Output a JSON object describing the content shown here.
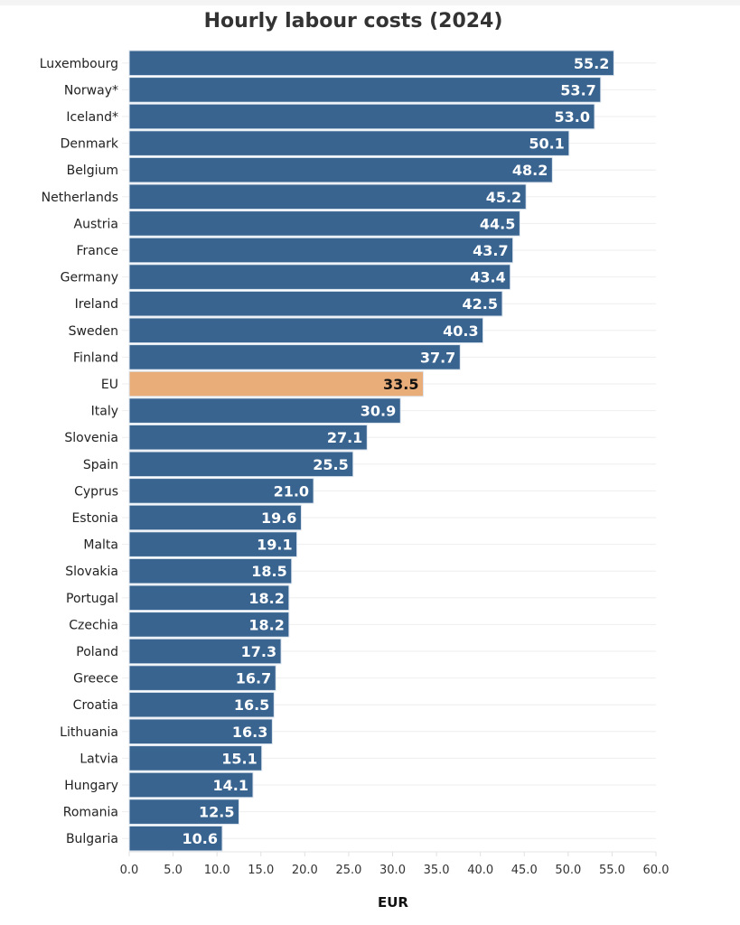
{
  "chart_data": {
    "type": "bar",
    "orientation": "horizontal",
    "title": "Hourly labour costs (2024)",
    "xlabel": "EUR",
    "ylabel": "",
    "xlim": [
      0,
      60
    ],
    "xticks": [
      "0.0",
      "5.0",
      "10.0",
      "15.0",
      "20.0",
      "25.0",
      "30.0",
      "35.0",
      "40.0",
      "45.0",
      "50.0",
      "55.0",
      "60.0"
    ],
    "grid": true,
    "categories": [
      "Luxembourg",
      "Norway*",
      "Iceland*",
      "Denmark",
      "Belgium",
      "Netherlands",
      "Austria",
      "France",
      "Germany",
      "Ireland",
      "Sweden",
      "Finland",
      "EU",
      "Italy",
      "Slovenia",
      "Spain",
      "Cyprus",
      "Estonia",
      "Malta",
      "Slovakia",
      "Portugal",
      "Czechia",
      "Poland",
      "Greece",
      "Croatia",
      "Lithuania",
      "Latvia",
      "Hungary",
      "Romania",
      "Bulgaria"
    ],
    "values": [
      55.2,
      53.7,
      53.0,
      50.1,
      48.2,
      45.2,
      44.5,
      43.7,
      43.4,
      42.5,
      40.3,
      37.7,
      33.5,
      30.9,
      27.1,
      25.5,
      21.0,
      19.6,
      19.1,
      18.5,
      18.2,
      18.2,
      17.3,
      16.7,
      16.5,
      16.3,
      15.1,
      14.1,
      12.5,
      10.6
    ],
    "highlight": "EU",
    "colors": {
      "bar": "#3a6490",
      "highlight": "#e8ad78",
      "label": "#ffffff",
      "highlight_label": "#111111"
    }
  }
}
